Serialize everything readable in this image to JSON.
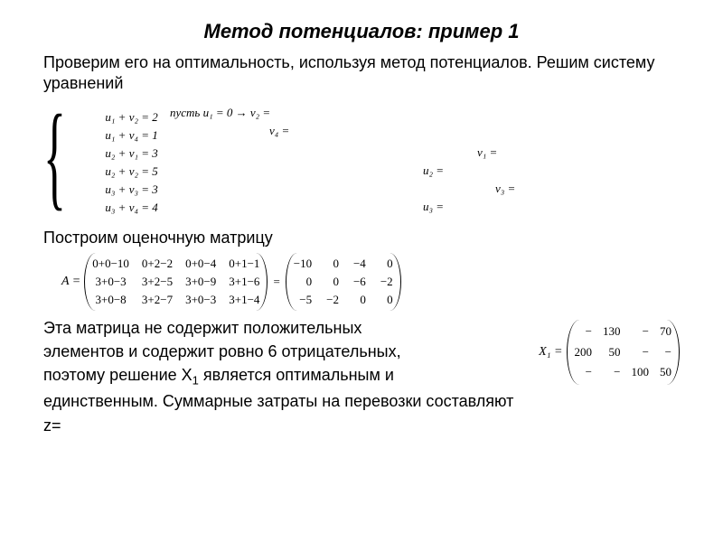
{
  "title": "Метод потенциалов: пример 1",
  "intro": "Проверим его на оптимальность, используя метод потенциалов. Решим систему уравнений",
  "system": {
    "eq": [
      "u₁ + v₂ = 2",
      "u₁ + v₄ = 1",
      "u₂ + v₁ = 3",
      "u₂ + v₂ = 5",
      "u₃ + v₃ = 3",
      "u₃ + v₄ = 4"
    ],
    "pust": "пусть   u₁ = 0 → v₂ =",
    "v4": "v₄ =",
    "v1": "v₁ =",
    "u2": "u₂ =",
    "v3": "v₃ =",
    "u3": "u₃ ="
  },
  "subhead1": "Построим оценочную матрицу",
  "matrixA": {
    "label": "A =",
    "expr": [
      [
        "0+0−10",
        "0+2−2",
        "0+0−4",
        "0+1−1"
      ],
      [
        "3+0−3",
        "3+2−5",
        "3+0−9",
        "3+1−6"
      ],
      [
        "3+0−8",
        "3+2−7",
        "3+0−3",
        "3+1−4"
      ]
    ],
    "result": [
      [
        "−10",
        "0",
        "−4",
        "0"
      ],
      [
        "0",
        "0",
        "−6",
        "−2"
      ],
      [
        "−5",
        "−2",
        "0",
        "0"
      ]
    ]
  },
  "body": {
    "l1": "Эта матрица не содержит положительных",
    "l2": "элементов и содержит ровно 6 отрицательных,",
    "l3": "поэтому решение X",
    "l3b": " является оптимальным и",
    "l4": "единственным. Суммарные затраты на перевозки составляют",
    "l5": "z="
  },
  "matrixX": {
    "label": "X₁ =",
    "rows": [
      [
        "−",
        "130",
        "−",
        "70"
      ],
      [
        "200",
        "50",
        "−",
        "−"
      ],
      [
        "−",
        "−",
        "100",
        "50"
      ]
    ]
  },
  "colors": {
    "bg": "#ffffff",
    "text": "#000000"
  },
  "fonts": {
    "body": "Arial",
    "math": "Times New Roman"
  }
}
